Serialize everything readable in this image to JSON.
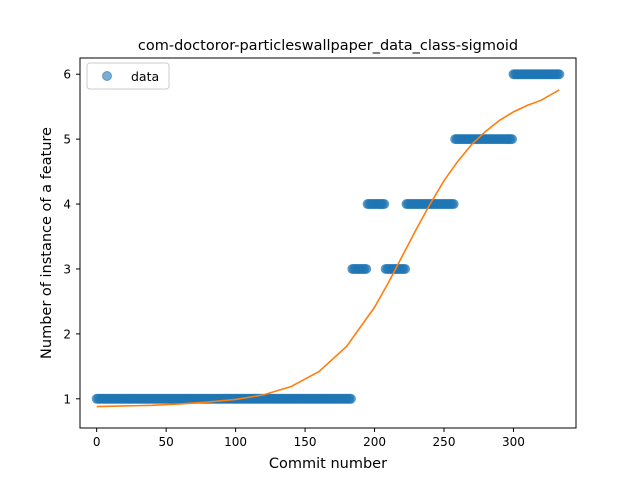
{
  "chart_data": {
    "type": "scatter",
    "title": "com-doctoror-particleswallpaper_data_class-sigmoid",
    "xlabel": "Commit number",
    "ylabel": "Number of instance of a feature",
    "xlim": [
      -12,
      345
    ],
    "ylim": [
      0.55,
      6.25
    ],
    "xticks": [
      0,
      50,
      100,
      150,
      200,
      250,
      300
    ],
    "yticks": [
      1,
      2,
      3,
      4,
      5,
      6
    ],
    "legend": {
      "position": "top-left",
      "entries": [
        "data"
      ]
    },
    "colors": {
      "data": "#1f77b4",
      "fit": "#ff7f0e"
    },
    "series": [
      {
        "name": "data",
        "kind": "scatter",
        "segments": [
          {
            "x_start": 0,
            "x_end": 183,
            "y": 1
          },
          {
            "x_start": 184,
            "x_end": 194,
            "y": 3
          },
          {
            "x_start": 195,
            "x_end": 207,
            "y": 4
          },
          {
            "x_start": 208,
            "x_end": 222,
            "y": 3
          },
          {
            "x_start": 223,
            "x_end": 257,
            "y": 4
          },
          {
            "x_start": 258,
            "x_end": 299,
            "y": 5
          },
          {
            "x_start": 300,
            "x_end": 333,
            "y": 6
          }
        ]
      },
      {
        "kind": "line",
        "points": [
          [
            0,
            0.88
          ],
          [
            20,
            0.89
          ],
          [
            40,
            0.9
          ],
          [
            60,
            0.92
          ],
          [
            80,
            0.95
          ],
          [
            100,
            0.99
          ],
          [
            120,
            1.06
          ],
          [
            140,
            1.19
          ],
          [
            160,
            1.42
          ],
          [
            180,
            1.81
          ],
          [
            200,
            2.41
          ],
          [
            210,
            2.79
          ],
          [
            220,
            3.2
          ],
          [
            230,
            3.61
          ],
          [
            240,
            4.0
          ],
          [
            250,
            4.36
          ],
          [
            260,
            4.66
          ],
          [
            270,
            4.92
          ],
          [
            280,
            5.12
          ],
          [
            290,
            5.29
          ],
          [
            300,
            5.42
          ],
          [
            310,
            5.52
          ],
          [
            320,
            5.6
          ],
          [
            333,
            5.76
          ]
        ]
      }
    ]
  }
}
